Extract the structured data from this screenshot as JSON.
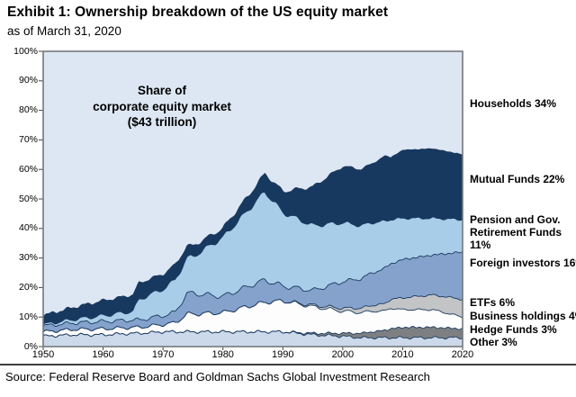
{
  "header": {
    "title": "Exhibit 1: Ownership breakdown of the US equity market",
    "subtitle": "as of March 31, 2020"
  },
  "annotation": {
    "line1": "Share of",
    "line2": "corporate equity market",
    "line3": "($43 trillion)"
  },
  "legend": [
    {
      "label": "Households 34%"
    },
    {
      "label": "Mutual Funds 22%"
    },
    {
      "label": "Pension and Gov. Retirement Funds 11%"
    },
    {
      "label": "Foreign investors 16%"
    },
    {
      "label": "ETFs 6%"
    },
    {
      "label": "Business holdings 4%"
    },
    {
      "label": "Hedge Funds 3%"
    },
    {
      "label": "Other 3%"
    }
  ],
  "source": "Source: Federal Reserve Board and Goldman Sachs Global Investment Research",
  "chart_data": {
    "type": "area",
    "stacked": true,
    "title": "Share of corporate equity market ($43 trillion)",
    "xlabel": "",
    "ylabel": "",
    "x_range": [
      1950,
      2020
    ],
    "y_range": [
      0,
      100
    ],
    "x_ticks": [
      "1950",
      "1960",
      "1970",
      "1980",
      "1990",
      "2000",
      "2010",
      "2020"
    ],
    "y_ticks": [
      "0%",
      "10%",
      "20%",
      "30%",
      "40%",
      "50%",
      "60%",
      "70%",
      "80%",
      "90%",
      "100%"
    ],
    "grid": false,
    "legend_position": "right",
    "x_years": [
      1950,
      1955,
      1960,
      1965,
      1966,
      1970,
      1972,
      1974,
      1975,
      1980,
      1985,
      1987,
      1990,
      1995,
      2000,
      2003,
      2005,
      2007,
      2008,
      2010,
      2015,
      2020
    ],
    "series": [
      {
        "name": "Other",
        "pct_2020": 3,
        "color": "#ccd9eb",
        "values": [
          3.5,
          4,
          4,
          4.5,
          4.5,
          5,
          5,
          5,
          5,
          5,
          5,
          5,
          5,
          4,
          3.5,
          3,
          3,
          3,
          3,
          3,
          3,
          3
        ]
      },
      {
        "name": "Hedge Funds",
        "pct_2020": 3,
        "color": "#7d7f82",
        "values": [
          0,
          0,
          0,
          0,
          0,
          0,
          0,
          0,
          0,
          0,
          0,
          0,
          0,
          0.5,
          1,
          1.5,
          2,
          2.5,
          3,
          3.5,
          3.5,
          3
        ]
      },
      {
        "name": "Business holdings",
        "pct_2020": 4,
        "color": "#fdfdfe",
        "values": [
          1.5,
          1.8,
          2,
          2,
          2,
          2.5,
          3,
          6,
          6,
          6.5,
          9,
          10,
          10.5,
          9,
          7.5,
          7,
          7,
          6.5,
          7,
          6,
          6,
          4
        ]
      },
      {
        "name": "ETFs",
        "pct_2020": 6,
        "color": "#c2c4c6",
        "values": [
          0,
          0,
          0,
          0,
          0,
          0,
          0,
          0,
          0,
          0,
          0,
          0,
          0,
          0.5,
          1,
          1.5,
          2,
          2.5,
          3,
          4,
          5,
          6
        ]
      },
      {
        "name": "Foreign investors",
        "pct_2020": 16,
        "color": "#84a2cb",
        "values": [
          2,
          2.2,
          2.5,
          2.5,
          2.5,
          3,
          3.5,
          7,
          7,
          5.5,
          7,
          7.5,
          5,
          5,
          9,
          10,
          11,
          12,
          12,
          13,
          13.5,
          16
        ]
      },
      {
        "name": "Pension and Gov. Retirement Funds",
        "pct_2020": 11,
        "color": "#a7cde9",
        "values": [
          0.5,
          1.2,
          2,
          3,
          7,
          9,
          11,
          12,
          12.5,
          20,
          27,
          30,
          25,
          22,
          20,
          18,
          17,
          16,
          15,
          14,
          12.5,
          11
        ]
      },
      {
        "name": "Mutual Funds",
        "pct_2020": 22,
        "color": "#17395f",
        "values": [
          3,
          4,
          5,
          5.5,
          5.5,
          5,
          5,
          4,
          3.5,
          3,
          5,
          6,
          7,
          13,
          19,
          19,
          20,
          22,
          21,
          23,
          23.5,
          22
        ]
      }
    ],
    "households": {
      "name": "Households",
      "pct_2020": 34,
      "color": "#dde7f3",
      "role": "remainder-to-100%-drawn-as-background"
    },
    "boundary_line_color": "#1c3a5f",
    "plot_border_color": "#75787c"
  }
}
